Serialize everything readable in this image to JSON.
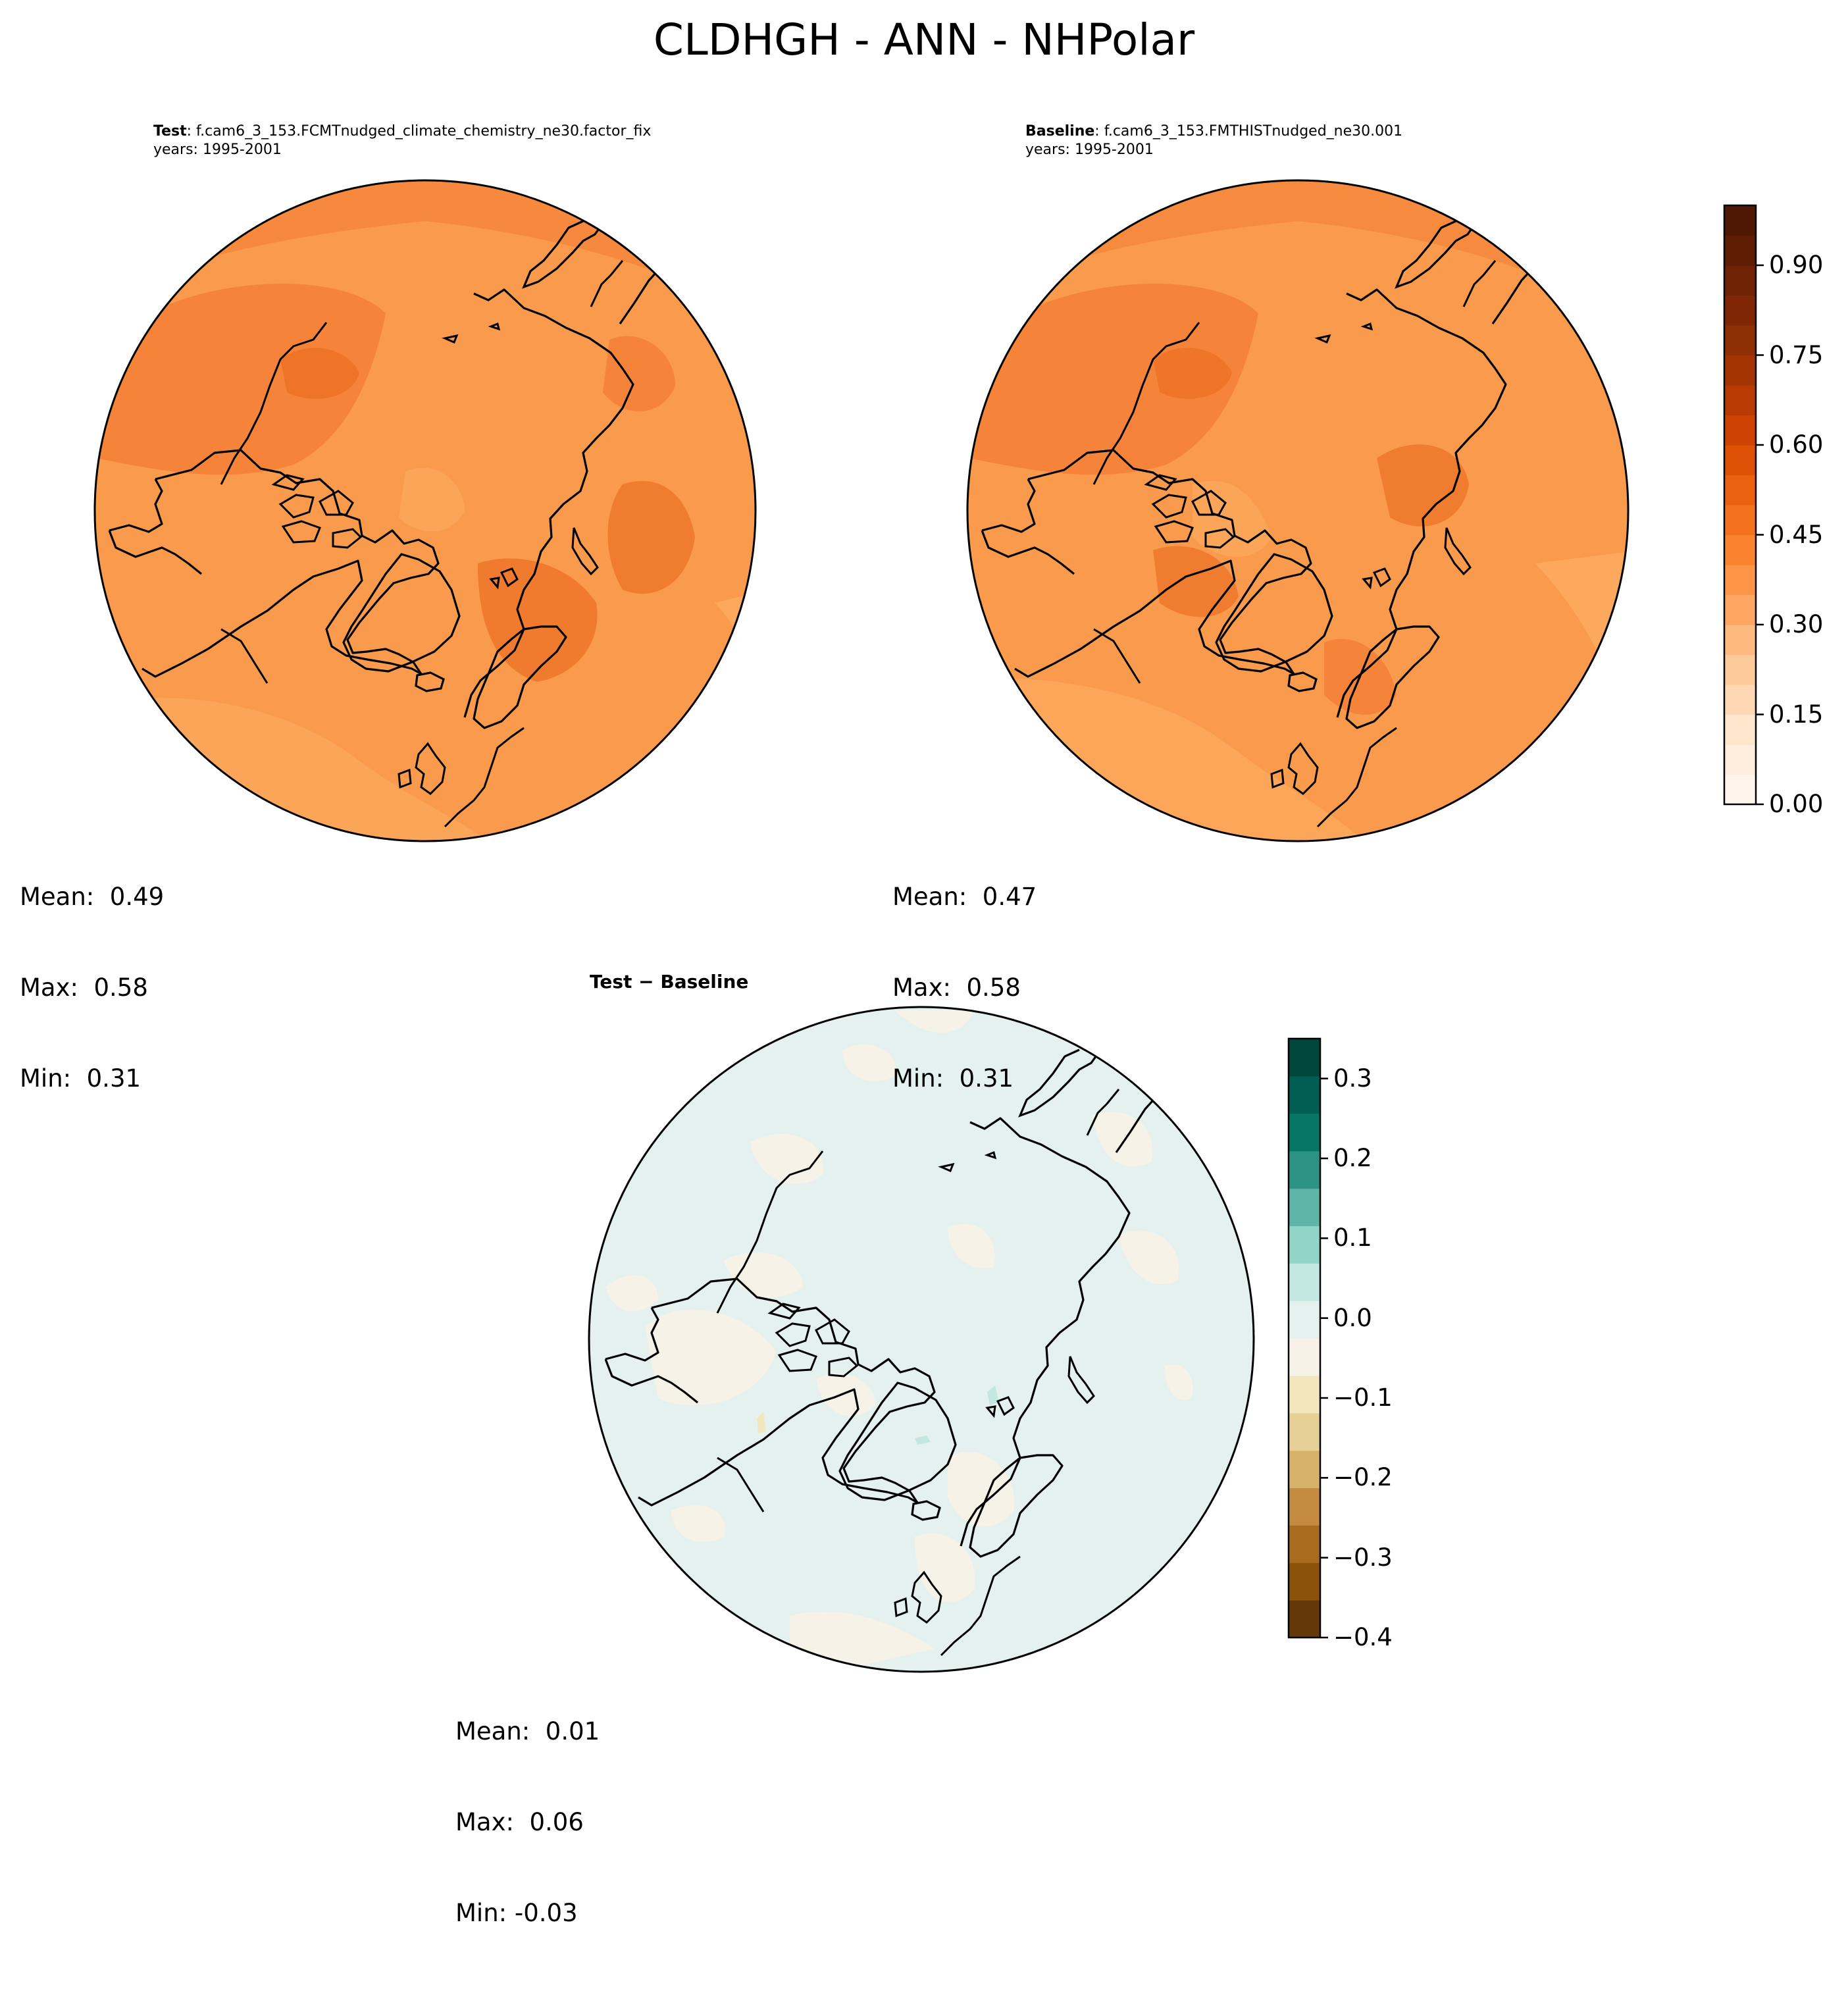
{
  "figure": {
    "title": "CLDHGH - ANN - NHPolar"
  },
  "panels": {
    "test": {
      "case_label": "Test",
      "case_name": "f.cam6_3_153.FCMTnudged_climate_chemistry_ne30.factor_fix",
      "years": "years: 1995-2001",
      "stats": {
        "mean": "Mean:  0.49",
        "max": "Max:  0.58",
        "min": "Min:  0.31"
      }
    },
    "baseline": {
      "case_label": "Baseline",
      "case_name": "f.cam6_3_153.FMTHISTnudged_ne30.001",
      "years": "years: 1995-2001",
      "stats": {
        "mean": "Mean:  0.47",
        "max": "Max:  0.58",
        "min": "Min:  0.31"
      }
    },
    "diff": {
      "title": "Test − Baseline",
      "stats": {
        "mean": "Mean:  0.01",
        "max": "Max:  0.06",
        "min": "Min: -0.03"
      }
    }
  },
  "colorbars": {
    "main": {
      "ticks": [
        "0.00",
        "0.15",
        "0.30",
        "0.45",
        "0.60",
        "0.75",
        "0.90"
      ],
      "tick_values": [
        0,
        0.15,
        0.3,
        0.45,
        0.6,
        0.75,
        0.9
      ],
      "range": [
        0,
        1.0
      ],
      "levels": 20,
      "colors": [
        "#fff5eb",
        "#feeddc",
        "#fee6cd",
        "#fdd8b3",
        "#fdca99",
        "#fdb97f",
        "#fda762",
        "#fd9547",
        "#fa8330",
        "#f4721d",
        "#ea6110",
        "#de5107",
        "#cf4302",
        "#b93a03",
        "#a43503",
        "#8f2f04",
        "#7f2704",
        "#6f2204",
        "#5f1d03",
        "#501803"
      ]
    },
    "diff": {
      "ticks": [
        "−0.4",
        "−0.3",
        "−0.2",
        "−0.1",
        "0.0",
        "0.1",
        "0.2",
        "0.3"
      ],
      "tick_values": [
        -0.4,
        -0.3,
        -0.2,
        -0.1,
        0.0,
        0.1,
        0.2,
        0.3
      ],
      "range": [
        -0.4,
        0.35
      ],
      "colors": [
        "#653907",
        "#8b5209",
        "#a96b1f",
        "#c28b3f",
        "#d7b269",
        "#e6d096",
        "#f2e6bf",
        "#f6f2e7",
        "#e5f1ef",
        "#c2e8e1",
        "#91d5c9",
        "#5fb4a8",
        "#2d9385",
        "#077667",
        "#005f52",
        "#01463b"
      ]
    }
  },
  "map_colors": {
    "test": {
      "base": "#f99a4c",
      "darker": "#f5843a",
      "darkest": "#ee7428",
      "lighter": "#fca95e",
      "lightest": "#fdbd80"
    },
    "baseline": {
      "base": "#f99a4c",
      "darker": "#f5843a",
      "darkest": "#ee7428",
      "lighter": "#fca95e",
      "lightest": "#fdbd80"
    },
    "diff": {
      "base": "#e5f1ef",
      "neg": "#f6f2e7",
      "neg2": "#f2e6bf",
      "pos": "#c2e8e1"
    }
  }
}
